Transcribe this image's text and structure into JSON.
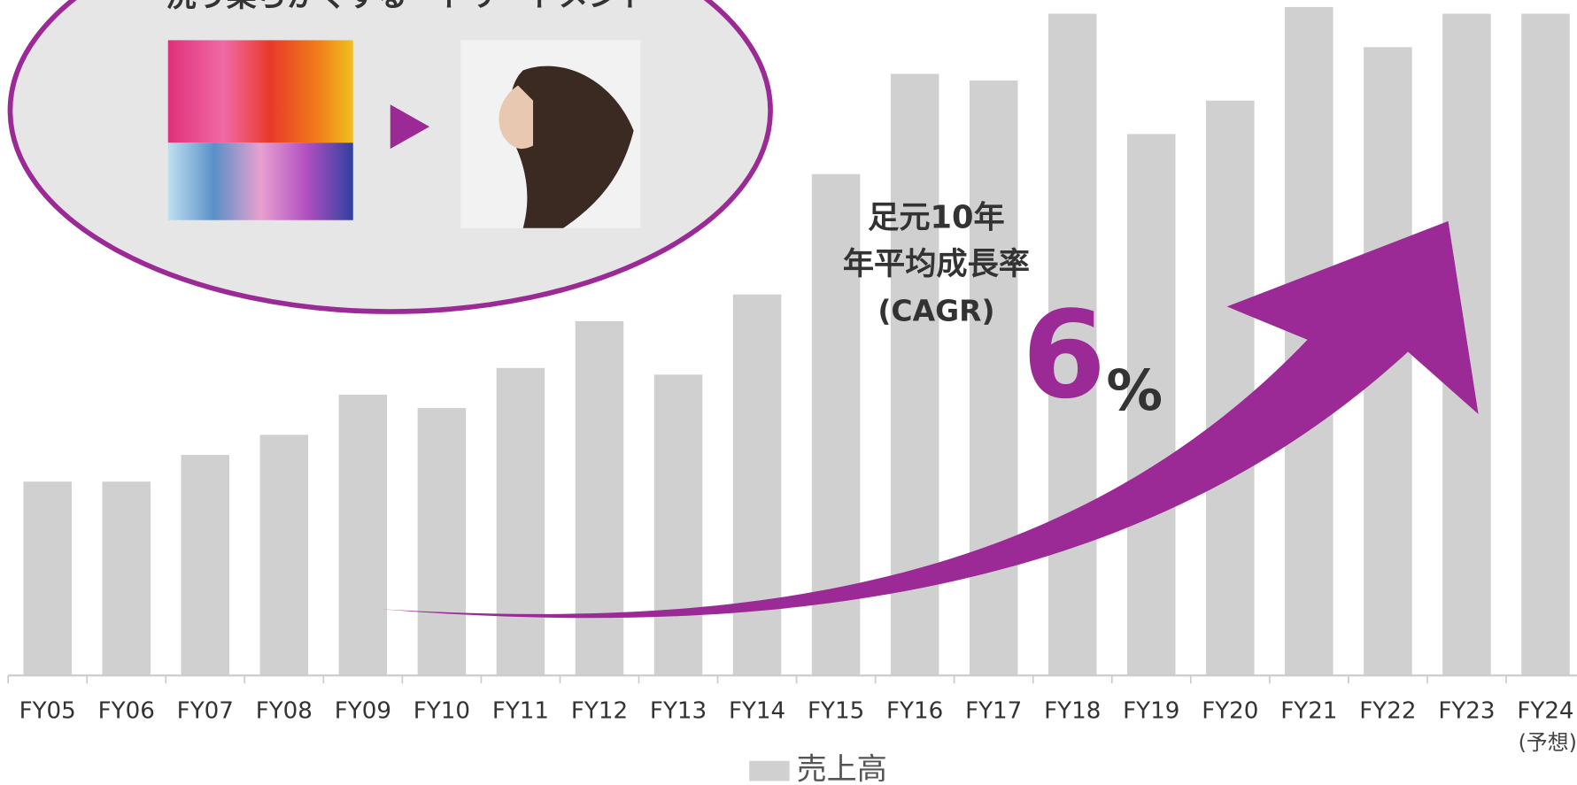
{
  "chart_data": {
    "type": "bar",
    "categories": [
      "FY05",
      "FY06",
      "FY07",
      "FY08",
      "FY09",
      "FY10",
      "FY11",
      "FY12",
      "FY13",
      "FY14",
      "FY15",
      "FY16",
      "FY17",
      "FY18",
      "FY19",
      "FY20",
      "FY21",
      "FY22",
      "FY23",
      "FY24"
    ],
    "category_note": "(予想)",
    "series": [
      {
        "name": "売上高",
        "color": "#d0d0d0",
        "values": [
          29,
          29,
          33,
          36,
          42,
          40,
          46,
          53,
          45,
          57,
          75,
          90,
          89,
          99,
          81,
          86,
          100,
          94,
          99,
          99
        ]
      }
    ],
    "ylim": [
      0,
      100
    ],
    "legend": "bottom",
    "bubble_title": "洗う柔らかくする　トリートメント",
    "annotations": [
      "足元10年",
      "年平均成長率",
      "(CAGR)"
    ],
    "cagr_number": "6",
    "cagr_unit": "%"
  }
}
